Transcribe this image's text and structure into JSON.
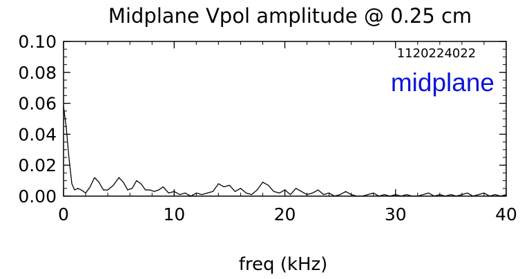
{
  "chart_data": {
    "type": "line",
    "title": "Midplane Vpol amplitude @ 0.25 cm",
    "xlabel": "freq (kHz)",
    "ylabel": "",
    "xlim": [
      0,
      40
    ],
    "ylim": [
      0,
      0.1
    ],
    "x_ticks": [
      0,
      10,
      20,
      30,
      40
    ],
    "x_tick_labels": [
      "0",
      "10",
      "20",
      "30",
      "40"
    ],
    "y_ticks": [
      0,
      0.02,
      0.04,
      0.06,
      0.08,
      0.1
    ],
    "y_tick_labels": [
      "0.00",
      "0.02",
      "0.04",
      "0.06",
      "0.08",
      "0.10"
    ],
    "grid": false,
    "annotations": {
      "shot_number": "1120224022",
      "label": "midplane",
      "label_color": "#0a14d8"
    },
    "series": [
      {
        "color": "#000000",
        "x": [
          0.0,
          0.25,
          0.5,
          0.75,
          1.0,
          1.3,
          1.6,
          2.0,
          2.4,
          2.8,
          3.2,
          3.6,
          4.0,
          4.5,
          5.0,
          5.4,
          5.8,
          6.2,
          6.6,
          7.0,
          7.4,
          7.8,
          8.2,
          8.6,
          9.0,
          9.5,
          10.0,
          10.5,
          11.0,
          11.5,
          12.0,
          12.5,
          13.0,
          13.5,
          14.0,
          14.5,
          15.0,
          15.5,
          16.0,
          16.5,
          17.0,
          17.5,
          18.0,
          18.5,
          19.0,
          19.5,
          20.0,
          20.5,
          21.0,
          21.5,
          22.0,
          22.5,
          23.0,
          23.5,
          24.0,
          24.5,
          25.0,
          25.5,
          26.0,
          26.5,
          27.0,
          27.5,
          28.0,
          28.5,
          29.0,
          29.5,
          30.0,
          30.5,
          31.0,
          31.5,
          32.0,
          32.5,
          33.0,
          33.5,
          34.0,
          34.5,
          35.0,
          35.5,
          36.0,
          36.5,
          37.0,
          37.5,
          38.0,
          38.5,
          39.0,
          39.5,
          40.0
        ],
        "y": [
          0.058,
          0.044,
          0.024,
          0.008,
          0.004,
          0.005,
          0.004,
          0.002,
          0.006,
          0.012,
          0.009,
          0.004,
          0.004,
          0.007,
          0.012,
          0.009,
          0.004,
          0.005,
          0.01,
          0.008,
          0.004,
          0.004,
          0.003,
          0.004,
          0.006,
          0.002,
          0.003,
          0.001,
          0.002,
          0.0,
          0.002,
          0.001,
          0.002,
          0.003,
          0.008,
          0.006,
          0.007,
          0.003,
          0.005,
          0.002,
          0.001,
          0.004,
          0.009,
          0.007,
          0.003,
          0.002,
          0.004,
          0.001,
          0.005,
          0.003,
          0.001,
          0.002,
          0.004,
          0.001,
          0.002,
          0.0,
          0.001,
          0.003,
          0.001,
          0.0,
          0.0,
          0.001,
          0.002,
          0.0,
          0.001,
          0.0,
          0.001,
          0.0,
          0.001,
          0.0,
          0.0,
          0.001,
          0.002,
          0.0,
          0.001,
          0.0,
          0.001,
          0.0,
          0.001,
          0.002,
          0.0,
          0.001,
          0.002,
          0.0,
          0.001,
          0.0,
          0.001
        ]
      }
    ]
  }
}
